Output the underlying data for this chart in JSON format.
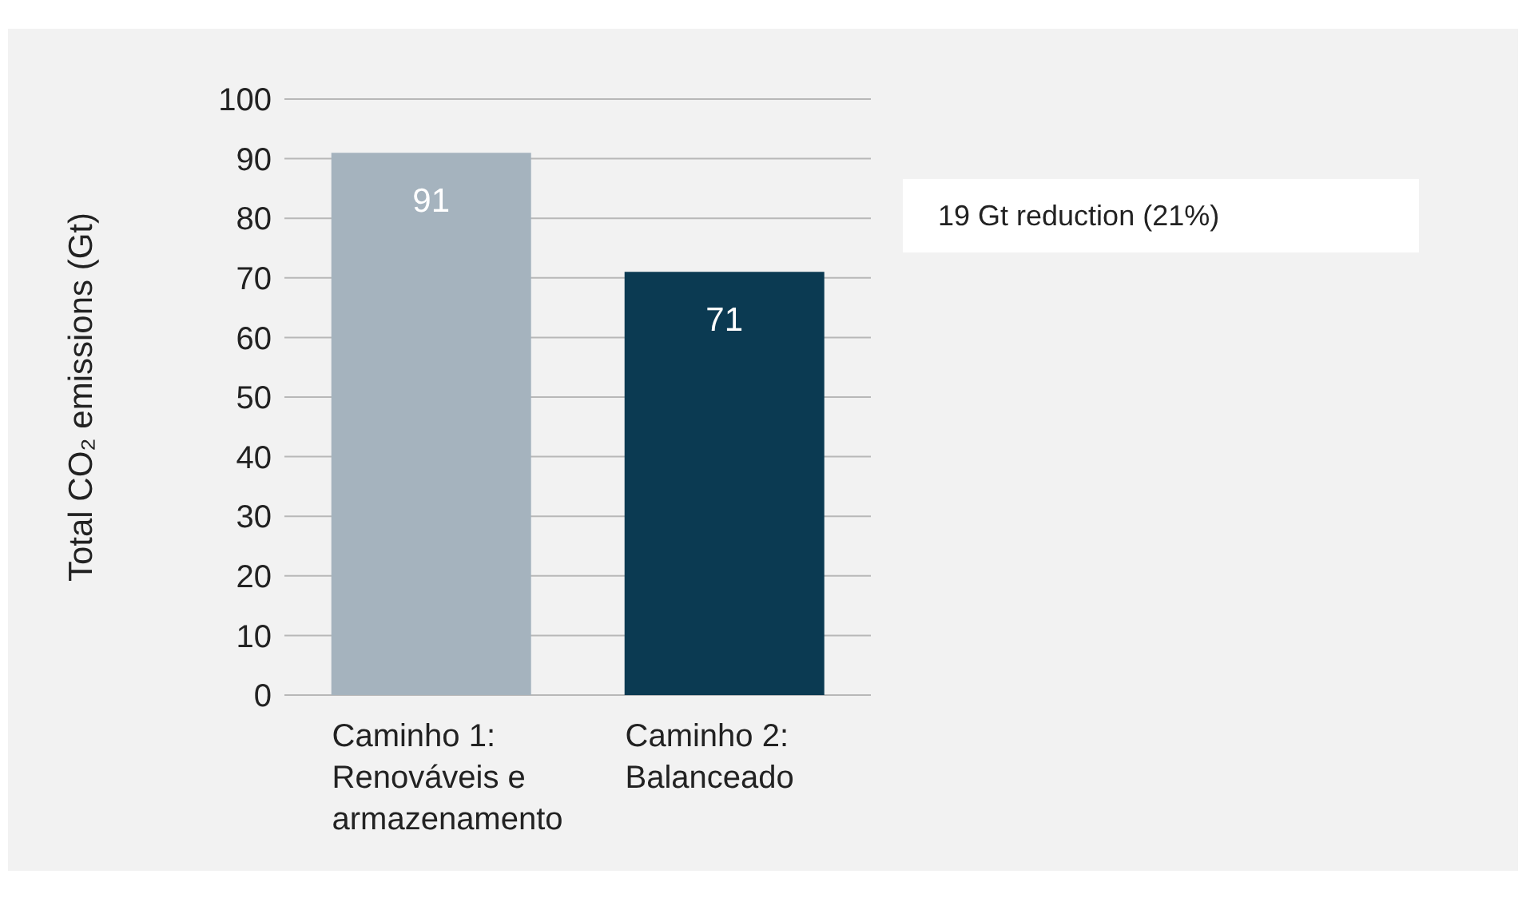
{
  "chart_data": {
    "type": "bar",
    "categories": [
      "Caminho 1: Renováveis e armazenamento",
      "Caminho 2: Balanceado"
    ],
    "values": [
      91,
      71
    ],
    "colors": [
      "#a5b3be",
      "#0b3a52"
    ],
    "ylabel": "Total CO₂ emissions (Gt)",
    "ylim": [
      0,
      100
    ],
    "yticks": [
      0,
      10,
      20,
      30,
      40,
      50,
      60,
      70,
      80,
      90,
      100
    ],
    "grid": "y",
    "data_labels": true,
    "annotations": [
      "19 Gt reduction (21%)"
    ]
  }
}
